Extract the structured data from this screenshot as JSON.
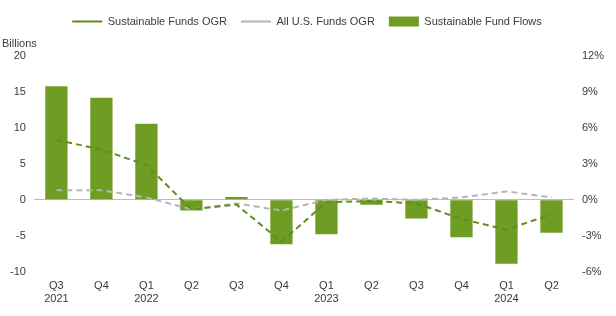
{
  "chart_data": {
    "type": "bar",
    "y_label": "Billions",
    "categories": [
      "Q3 2021",
      "Q4",
      "Q1 2022",
      "Q2",
      "Q3",
      "Q4",
      "Q1 2023",
      "Q2",
      "Q3",
      "Q4",
      "Q1 2024",
      "Q2"
    ],
    "series": [
      {
        "name": "Sustainable Fund Flows",
        "type": "bar",
        "color": "#6f9c23",
        "values": [
          15.8,
          14.2,
          10.6,
          -1.5,
          0.4,
          -6.2,
          -4.8,
          -0.7,
          -2.6,
          -5.2,
          -8.9,
          -4.6
        ]
      },
      {
        "name": "Sustainable Funds OGR",
        "type": "line",
        "line_style": "dashed",
        "color": "#5f8f1a",
        "axis": "y2",
        "values": [
          5.0,
          4.2,
          2.9,
          -0.8,
          -0.4,
          -3.5,
          -0.2,
          -0.1,
          -0.3,
          -1.6,
          -2.5,
          -1.2
        ]
      },
      {
        "name": "All U.S. Funds OGR",
        "type": "line",
        "line_style": "dashed",
        "color": "#b5b5b5",
        "axis": "y2",
        "values": [
          0.8,
          0.8,
          0.2,
          -0.8,
          -0.3,
          -0.9,
          0.0,
          0.1,
          0.0,
          0.2,
          0.7,
          0.2
        ]
      }
    ],
    "ylim": [
      -10,
      20
    ],
    "yticks": [
      -10,
      -5,
      0,
      5,
      10,
      15,
      20
    ],
    "y2lim": [
      -6,
      12
    ],
    "y2ticks": [
      {
        "value": -6,
        "label": "-6%"
      },
      {
        "value": -3,
        "label": "-3%"
      },
      {
        "value": 0,
        "label": "0%"
      },
      {
        "value": 3,
        "label": "3%"
      },
      {
        "value": 6,
        "label": "6%"
      },
      {
        "value": 9,
        "label": "9%"
      },
      {
        "value": 12,
        "label": "12%"
      }
    ],
    "grid": false,
    "legend": "top"
  }
}
